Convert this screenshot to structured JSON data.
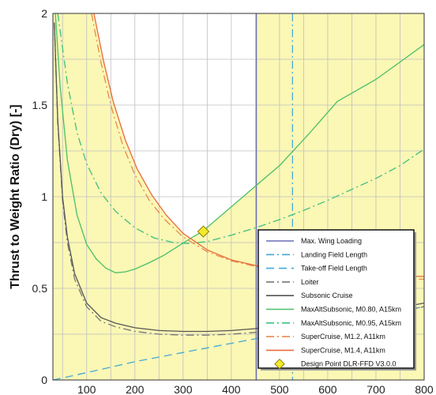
{
  "chart_data": {
    "type": "line",
    "title": "",
    "xlabel": "",
    "ylabel": "Thrust to Weight Ratio (Dry) [-]",
    "xlim": [
      30,
      800
    ],
    "ylim": [
      0,
      2
    ],
    "xticks": [
      100,
      200,
      300,
      400,
      500,
      600,
      700,
      800
    ],
    "yticks": [
      0,
      0.5,
      1,
      1.5,
      2
    ],
    "ytick_labels": [
      "0",
      "0.5",
      "1",
      "1.5",
      "2"
    ],
    "grid": true,
    "feasible_region_color": "#fbf7b5",
    "legend": {
      "placement": "bottom-right"
    },
    "series": [
      {
        "name": "Max. Wing Loading",
        "kind": "vline",
        "x": 452,
        "color": "#6a6fb6",
        "dash": "solid"
      },
      {
        "name": "Landing Field Length",
        "kind": "vline",
        "x": 527,
        "color": "#45a9d6",
        "dash": "dashdot"
      },
      {
        "name": "Take-off Field Length",
        "color": "#45a9d6",
        "dash": "dash",
        "x": [
          30,
          100,
          200,
          300,
          400,
          500,
          600,
          700,
          800
        ],
        "y": [
          0.0,
          0.04,
          0.1,
          0.15,
          0.2,
          0.25,
          0.3,
          0.35,
          0.4
        ]
      },
      {
        "name": "Loiter",
        "color": "#777777",
        "dash": "dashdot",
        "x": [
          33,
          40,
          50,
          60,
          75,
          100,
          130,
          160,
          200,
          250,
          300,
          350,
          400,
          450,
          500,
          600,
          700,
          800
        ],
        "y": [
          1.95,
          1.4,
          0.98,
          0.75,
          0.55,
          0.4,
          0.32,
          0.29,
          0.265,
          0.25,
          0.245,
          0.245,
          0.25,
          0.26,
          0.28,
          0.31,
          0.35,
          0.4
        ]
      },
      {
        "name": "Subsonic Cruise",
        "color": "#555555",
        "dash": "solid",
        "x": [
          33,
          40,
          50,
          60,
          75,
          100,
          130,
          160,
          200,
          250,
          300,
          350,
          400,
          450,
          500,
          600,
          700,
          800
        ],
        "y": [
          1.95,
          1.42,
          1.0,
          0.78,
          0.58,
          0.42,
          0.34,
          0.31,
          0.285,
          0.27,
          0.265,
          0.265,
          0.27,
          0.28,
          0.3,
          0.33,
          0.37,
          0.42
        ]
      },
      {
        "name": "MaxAltSubsonic, M0.80, A15km",
        "color": "#4cbf6a",
        "dash": "solid",
        "x": [
          35,
          45,
          60,
          80,
          100,
          120,
          140,
          160,
          180,
          200,
          230,
          260,
          290,
          320,
          340,
          380,
          420,
          460,
          500,
          560,
          620,
          700,
          800
        ],
        "y": [
          2.0,
          1.6,
          1.2,
          0.9,
          0.74,
          0.66,
          0.61,
          0.585,
          0.59,
          0.605,
          0.64,
          0.68,
          0.73,
          0.78,
          0.81,
          0.9,
          0.99,
          1.08,
          1.17,
          1.34,
          1.52,
          1.64,
          1.83
        ]
      },
      {
        "name": "MaxAltSubsonic, M0.95, A15km",
        "color": "#3fbf7f",
        "dash": "dashdot",
        "x": [
          40,
          60,
          80,
          100,
          130,
          160,
          200,
          240,
          280,
          310,
          350,
          400,
          450,
          500,
          550,
          600,
          650,
          700,
          750,
          800
        ],
        "y": [
          2.0,
          1.62,
          1.35,
          1.18,
          1.02,
          0.92,
          0.83,
          0.775,
          0.75,
          0.745,
          0.755,
          0.79,
          0.83,
          0.875,
          0.925,
          0.98,
          1.04,
          1.1,
          1.17,
          1.26
        ]
      },
      {
        "name": "SuperCruise, M1.2, A11km",
        "color": "#e88a4e",
        "dash": "dashdot",
        "x": [
          110,
          130,
          150,
          175,
          200,
          230,
          260,
          300,
          350,
          400,
          450,
          500,
          550,
          600,
          650,
          700,
          750,
          800
        ],
        "y": [
          2.0,
          1.73,
          1.5,
          1.28,
          1.12,
          0.98,
          0.88,
          0.78,
          0.7,
          0.65,
          0.62,
          0.6,
          0.58,
          0.565,
          0.555,
          0.55,
          0.55,
          0.55
        ]
      },
      {
        "name": "SuperCruise, M1.4, A11km",
        "color": "#e86a3a",
        "dash": "solid",
        "x": [
          115,
          135,
          155,
          180,
          205,
          235,
          265,
          300,
          350,
          400,
          450,
          500,
          550,
          600,
          650,
          700,
          750,
          800
        ],
        "y": [
          2.0,
          1.74,
          1.52,
          1.31,
          1.15,
          1.01,
          0.9,
          0.8,
          0.71,
          0.655,
          0.625,
          0.6,
          0.585,
          0.575,
          0.57,
          0.565,
          0.565,
          0.565
        ]
      },
      {
        "name": "Design Point DLR-FFD V3.0.0",
        "kind": "point",
        "x": 342,
        "y": 0.81,
        "color": "#f5ea2a",
        "marker": "diamond"
      }
    ]
  }
}
